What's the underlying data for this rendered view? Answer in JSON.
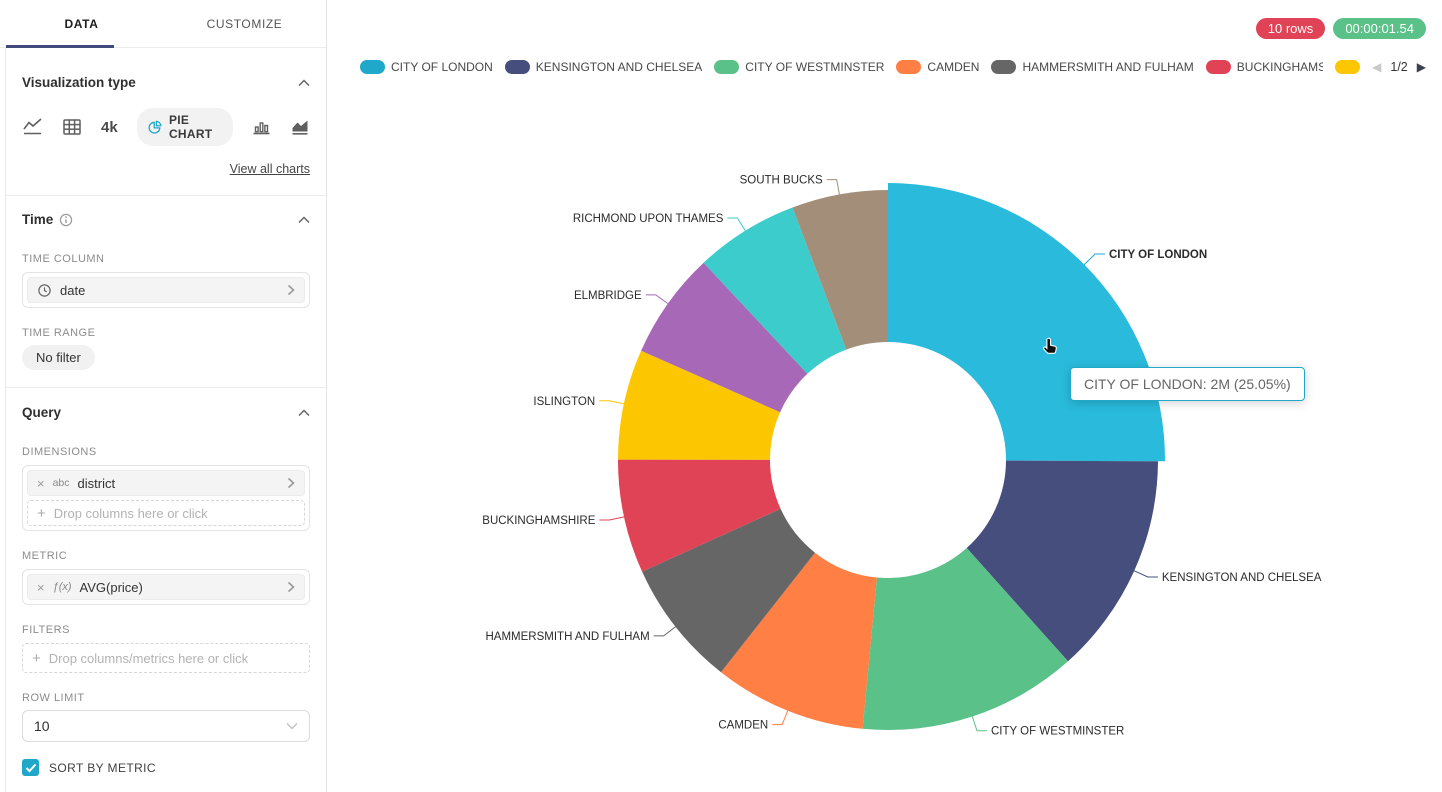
{
  "colors": {
    "accent": "#20A7C9",
    "tab_underline": "#414A7C"
  },
  "sidebar": {
    "tabs": [
      {
        "label": "DATA",
        "active": true
      },
      {
        "label": "CUSTOMIZE",
        "active": false
      }
    ],
    "viz": {
      "title": "Visualization type",
      "icons": [
        "line-chart",
        "table",
        "big-number",
        "pie-chart",
        "bar-chart",
        "area-chart"
      ],
      "kpi_label": "4k",
      "selected_label": "PIE CHART",
      "view_all_label": "View all charts"
    },
    "time": {
      "title": "Time",
      "column_label": "TIME COLUMN",
      "column_value": "date",
      "range_label": "TIME RANGE",
      "range_value": "No filter"
    },
    "query": {
      "title": "Query",
      "dimensions_label": "DIMENSIONS",
      "dimension_type": "abc",
      "dimension_value": "district",
      "dimensions_placeholder": "Drop columns here or click",
      "metric_label": "METRIC",
      "metric_fn": "ƒ(x)",
      "metric_value": "AVG(price)",
      "filters_label": "FILTERS",
      "filters_placeholder": "Drop columns/metrics here or click",
      "row_limit_label": "ROW LIMIT",
      "row_limit_value": "10",
      "sort_label": "SORT BY METRIC",
      "sort_checked": true
    }
  },
  "header": {
    "badges": [
      {
        "label": "10 rows",
        "color": "#E04355"
      },
      {
        "label": "00:00:01.54",
        "color": "#5AC189"
      }
    ]
  },
  "legend": {
    "position": "top",
    "visible_count": 6,
    "pagination": {
      "label": "1/2",
      "prev_enabled": false,
      "next_enabled": true
    }
  },
  "tooltip": {
    "text": "CITY OF LONDON: 2M (25.05%)"
  },
  "chart_data": {
    "type": "pie",
    "donut": true,
    "label_position": "outside",
    "hovered_slice": "CITY OF LONDON",
    "hovered_value_display": "2M",
    "series": [
      {
        "name": "CITY OF LONDON",
        "percent": 25.05,
        "color": "#1FA8C9",
        "hover_color": "#29BADC"
      },
      {
        "name": "KENSINGTON AND CHELSEA",
        "percent": 13.3,
        "color": "#454E7C"
      },
      {
        "name": "CITY OF WESTMINSTER",
        "percent": 13.1,
        "color": "#5AC189"
      },
      {
        "name": "CAMDEN",
        "percent": 9.1,
        "color": "#FF7F44"
      },
      {
        "name": "HAMMERSMITH AND FULHAM",
        "percent": 7.6,
        "color": "#666666"
      },
      {
        "name": "BUCKINGHAMSHIRE",
        "percent": 6.8,
        "color": "#E04355"
      },
      {
        "name": "ISLINGTON",
        "percent": 6.6,
        "color": "#FCC700"
      },
      {
        "name": "ELMBRIDGE",
        "percent": 6.4,
        "color": "#A868B8"
      },
      {
        "name": "RICHMOND UPON THAMES",
        "percent": 6.2,
        "color": "#3CCCCB"
      },
      {
        "name": "SOUTH BUCKS",
        "percent": 5.75,
        "color": "#A38F79"
      }
    ]
  }
}
